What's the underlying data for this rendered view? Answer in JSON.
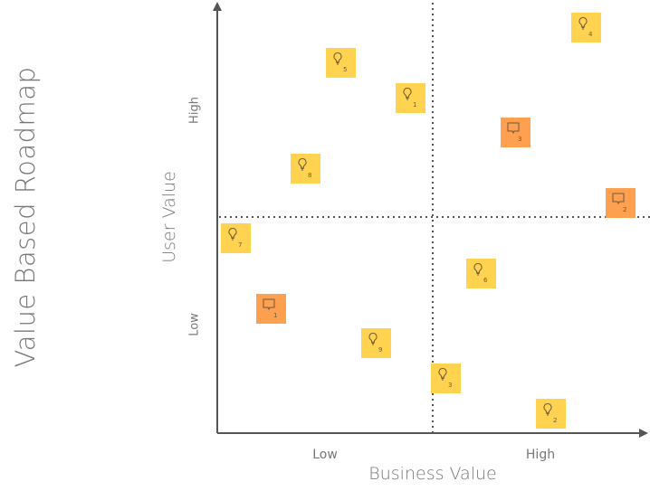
{
  "title": "Value Based Roadmap",
  "y_axis": {
    "label": "User Value",
    "high": "High",
    "low": "Low"
  },
  "x_axis": {
    "label": "Business Value",
    "low": "Low",
    "high": "High"
  },
  "colors": {
    "idea": "#FFD24F",
    "feedback": "#FF9F50",
    "axis": "#555555"
  },
  "notes": [
    {
      "type": "idea",
      "icon": "lightbulb-icon",
      "number": "5"
    },
    {
      "type": "idea",
      "icon": "lightbulb-icon",
      "number": "1"
    },
    {
      "type": "idea",
      "icon": "lightbulb-icon",
      "number": "4"
    },
    {
      "type": "feedback",
      "icon": "speech-bubble-icon",
      "number": "3"
    },
    {
      "type": "idea",
      "icon": "lightbulb-icon",
      "number": "8"
    },
    {
      "type": "feedback",
      "icon": "speech-bubble-icon",
      "number": "2"
    },
    {
      "type": "idea",
      "icon": "lightbulb-icon",
      "number": "7"
    },
    {
      "type": "idea",
      "icon": "lightbulb-icon",
      "number": "6"
    },
    {
      "type": "feedback",
      "icon": "speech-bubble-icon",
      "number": "1"
    },
    {
      "type": "idea",
      "icon": "lightbulb-icon",
      "number": "9"
    },
    {
      "type": "idea",
      "icon": "lightbulb-icon",
      "number": "3"
    },
    {
      "type": "idea",
      "icon": "lightbulb-icon",
      "number": "2"
    }
  ]
}
